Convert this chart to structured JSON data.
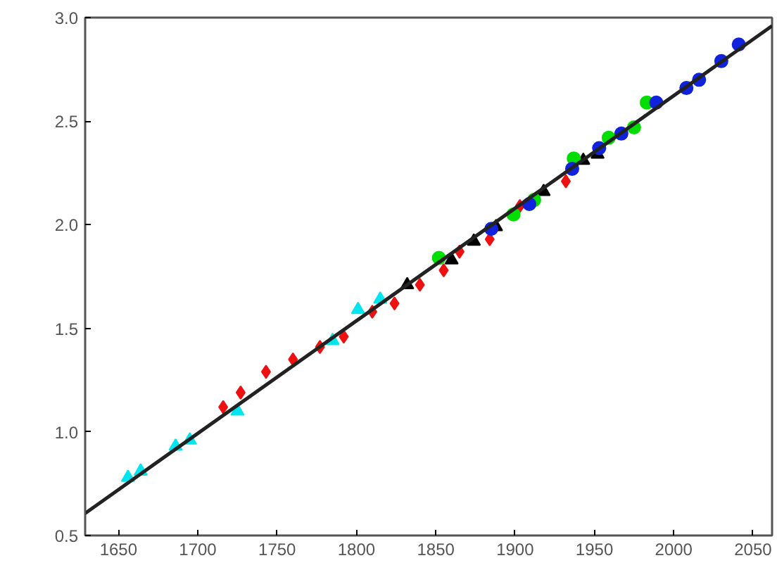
{
  "chart_data": {
    "type": "scatter",
    "xlim": [
      1629,
      2062
    ],
    "ylim": [
      0.5,
      3.0
    ],
    "xticks": [
      1650,
      1700,
      1750,
      1800,
      1850,
      1900,
      1950,
      2000,
      2050
    ],
    "yticks": [
      {
        "value": 0.5,
        "label": "0.5"
      },
      {
        "value": 1.0,
        "label": "1.0"
      },
      {
        "value": 1.5,
        "label": "1.5"
      },
      {
        "value": 2.0,
        "label": "2.0"
      },
      {
        "value": 2.5,
        "label": "2.5"
      },
      {
        "value": 3.0,
        "label": "3.0"
      }
    ],
    "grid": false,
    "series": [
      {
        "color": "#00e5ee",
        "marker": "triangle",
        "x": [
          1656,
          1664,
          1686,
          1695,
          1725,
          1785,
          1801,
          1815
        ],
        "values": [
          0.78,
          0.81,
          0.93,
          0.96,
          1.1,
          1.44,
          1.59,
          1.64
        ]
      },
      {
        "color": "#ee1111",
        "marker": "diamond",
        "x": [
          1716,
          1727,
          1743,
          1760,
          1777,
          1792,
          1810,
          1824,
          1840,
          1855,
          1865,
          1884,
          1903,
          1932
        ],
        "values": [
          1.12,
          1.19,
          1.29,
          1.35,
          1.41,
          1.46,
          1.58,
          1.62,
          1.71,
          1.78,
          1.87,
          1.93,
          2.09,
          2.21
        ]
      },
      {
        "color": "#000000",
        "marker": "triangle",
        "x": [
          1832,
          1860,
          1874,
          1888,
          1918,
          1943,
          1952
        ],
        "values": [
          1.71,
          1.83,
          1.92,
          1.99,
          2.16,
          2.31,
          2.34
        ]
      },
      {
        "color": "#00dd00",
        "marker": "circle",
        "x": [
          1852,
          1899,
          1912,
          1937,
          1959,
          1975,
          1983
        ],
        "values": [
          1.84,
          2.05,
          2.12,
          2.32,
          2.42,
          2.47,
          2.59
        ]
      },
      {
        "color": "#1122dd",
        "marker": "circle",
        "x": [
          1885,
          1909,
          1936,
          1953,
          1967,
          1989,
          2008,
          2016,
          2030,
          2041
        ],
        "values": [
          1.98,
          2.1,
          2.27,
          2.37,
          2.44,
          2.59,
          2.66,
          2.7,
          2.79,
          2.87
        ]
      },
      {
        "type": "line",
        "color": "#222222",
        "line_style": "solid",
        "x": [
          1629,
          2062
        ],
        "values": [
          0.607,
          2.96
        ]
      }
    ]
  }
}
